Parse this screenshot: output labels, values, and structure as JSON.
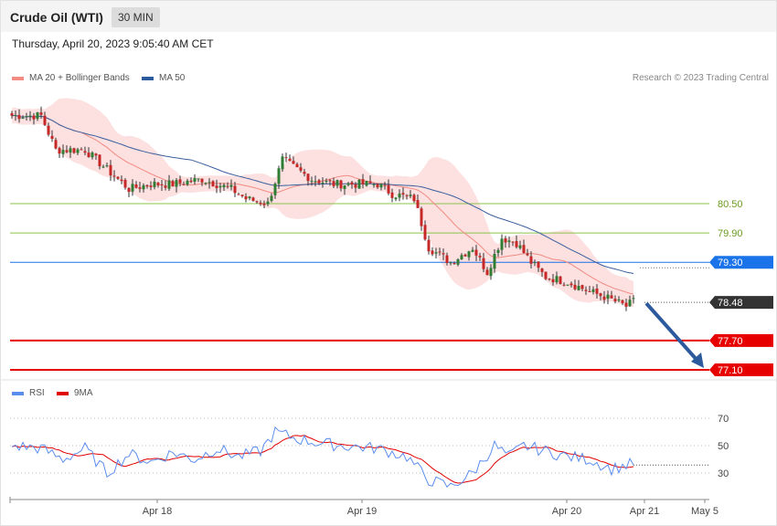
{
  "header": {
    "title": "Crude Oil (WTI)",
    "timeframe": "30 MIN",
    "datetime": "Thursday, April 20, 2023 9:05:40 AM CET"
  },
  "legend": {
    "main": [
      {
        "label": "MA 20 + Bollinger Bands",
        "color": "#f28b82"
      },
      {
        "label": "MA 50",
        "color": "#2c5a9c"
      }
    ],
    "rsi": [
      {
        "label": "RSI",
        "color": "#5b8def"
      },
      {
        "label": "9MA",
        "color": "#e00000"
      }
    ],
    "credit": "Research © 2023 Trading Central"
  },
  "colors": {
    "up": "#2e7d32",
    "down": "#c62828",
    "band_fill": "#fde0e0",
    "ma20": "#f28b82",
    "ma50": "#3a5f9e",
    "support": "#e60000",
    "resistance": "#8bc34a",
    "pivot": "#1a73e8",
    "last": "#333333",
    "arrow": "#2c5a9c",
    "rsi": "#5b8def",
    "rsi_ma": "#e00000"
  },
  "chart_data": {
    "type": "candlestick",
    "instrument": "Crude Oil (WTI)",
    "interval": "30 MIN",
    "price_levels": [
      {
        "value": 80.5,
        "label": "80.50",
        "kind": "resistance"
      },
      {
        "value": 79.9,
        "label": "79.90",
        "kind": "resistance"
      },
      {
        "value": 79.3,
        "label": "79.30",
        "kind": "pivot"
      },
      {
        "value": 78.48,
        "label": "78.48",
        "kind": "last"
      },
      {
        "value": 77.7,
        "label": "77.70",
        "kind": "support"
      },
      {
        "value": 77.1,
        "label": "77.10",
        "kind": "support"
      }
    ],
    "forecast": {
      "from": 78.48,
      "to": 77.1,
      "direction": "down"
    },
    "x_ticks": [
      "Apr 18",
      "Apr 19",
      "Apr 20",
      "Apr 21",
      "May 5"
    ],
    "rsi_ticks": [
      "70",
      "50",
      "30"
    ],
    "rsi_levels": [
      70,
      50,
      30
    ],
    "price_waypoints": [
      [
        0,
        82.3
      ],
      [
        8,
        82.3
      ],
      [
        12,
        81.6
      ],
      [
        20,
        81.6
      ],
      [
        26,
        81.2
      ],
      [
        32,
        80.8
      ],
      [
        38,
        80.9
      ],
      [
        44,
        80.9
      ],
      [
        52,
        81.0
      ],
      [
        60,
        80.8
      ],
      [
        64,
        80.6
      ],
      [
        70,
        80.5
      ],
      [
        74,
        81.4
      ],
      [
        82,
        81.0
      ],
      [
        88,
        80.9
      ],
      [
        96,
        80.9
      ],
      [
        100,
        80.9
      ],
      [
        104,
        80.7
      ],
      [
        110,
        80.6
      ],
      [
        114,
        79.6
      ],
      [
        120,
        79.3
      ],
      [
        126,
        79.6
      ],
      [
        130,
        79.1
      ],
      [
        134,
        79.8
      ],
      [
        138,
        79.7
      ],
      [
        142,
        79.3
      ],
      [
        146,
        79.0
      ],
      [
        152,
        78.9
      ],
      [
        158,
        78.7
      ],
      [
        162,
        78.6
      ],
      [
        168,
        78.4
      ],
      [
        170,
        78.5
      ]
    ],
    "rsi_waypoints": [
      [
        0,
        50
      ],
      [
        8,
        48
      ],
      [
        14,
        40
      ],
      [
        20,
        48
      ],
      [
        26,
        30
      ],
      [
        32,
        44
      ],
      [
        38,
        38
      ],
      [
        44,
        45
      ],
      [
        50,
        40
      ],
      [
        56,
        48
      ],
      [
        62,
        42
      ],
      [
        68,
        46
      ],
      [
        72,
        60
      ],
      [
        78,
        55
      ],
      [
        84,
        52
      ],
      [
        90,
        50
      ],
      [
        100,
        48
      ],
      [
        108,
        42
      ],
      [
        114,
        25
      ],
      [
        120,
        20
      ],
      [
        126,
        30
      ],
      [
        132,
        50
      ],
      [
        136,
        42
      ],
      [
        140,
        50
      ],
      [
        146,
        46
      ],
      [
        152,
        42
      ],
      [
        158,
        40
      ],
      [
        164,
        33
      ],
      [
        170,
        37
      ]
    ]
  }
}
